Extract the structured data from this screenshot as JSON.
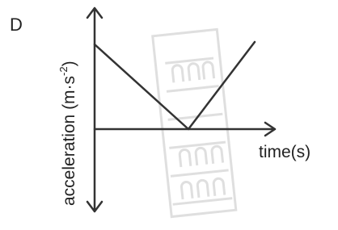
{
  "panel_label": "D",
  "y_axis_label": {
    "text": "acceleration (m·s",
    "superscript": "-2",
    "end": ")"
  },
  "x_axis_label": "time(s)"
}
